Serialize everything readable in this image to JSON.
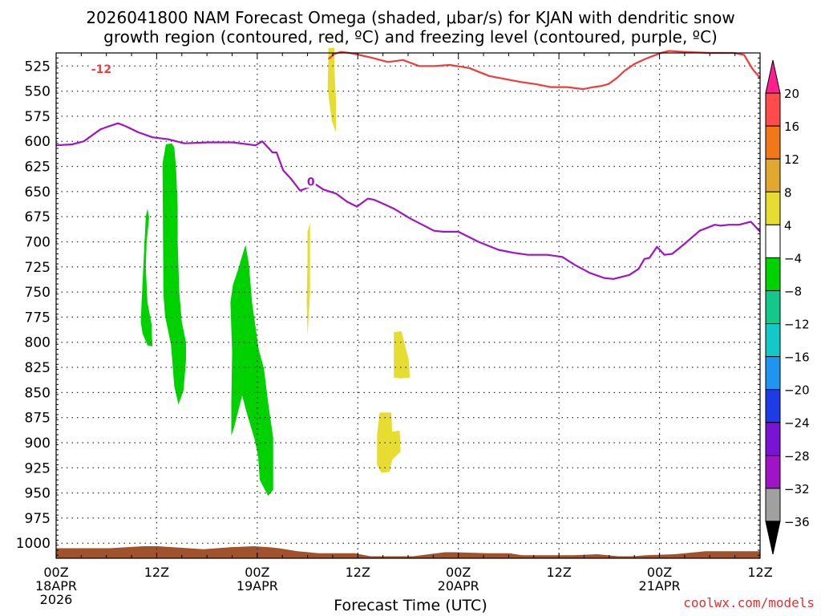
{
  "title_line1": "2026041800 NAM Forecast Omega (shaded, μbar/s) for KJAN with dendritic snow",
  "title_line2": "growth region (contoured, red, ºC) and freezing level (contoured, purple, ºC)",
  "credit": "coolwx.com/models",
  "chart_data": {
    "type": "heatmap",
    "xlabel": "Forecast Time (UTC)",
    "ylabel": "",
    "x_unit": "hours since 2026041800",
    "xlim": [
      0,
      84
    ],
    "ylim": [
      1015,
      512
    ],
    "y_ticks": [
      525,
      550,
      575,
      600,
      625,
      650,
      675,
      700,
      725,
      750,
      775,
      800,
      825,
      850,
      875,
      900,
      925,
      950,
      975,
      1000
    ],
    "x_ticks": [
      {
        "x": 0,
        "lines": [
          "00Z",
          "18APR",
          "2026"
        ]
      },
      {
        "x": 12,
        "lines": [
          "12Z"
        ]
      },
      {
        "x": 24,
        "lines": [
          "00Z",
          "19APR"
        ]
      },
      {
        "x": 36,
        "lines": [
          "12Z"
        ]
      },
      {
        "x": 48,
        "lines": [
          "00Z",
          "20APR"
        ]
      },
      {
        "x": 60,
        "lines": [
          "12Z"
        ]
      },
      {
        "x": 72,
        "lines": [
          "00Z",
          "21APR"
        ]
      },
      {
        "x": 84,
        "lines": [
          "12Z"
        ]
      }
    ],
    "grid": true,
    "colorbar": {
      "labels": [
        "20",
        "16",
        "12",
        "8",
        "4",
        "−4",
        "−8",
        "−12",
        "−16",
        "−20",
        "−24",
        "−28",
        "−32",
        "−36"
      ],
      "colors_top_to_bottom": [
        "#ff1f8f",
        "#ff4b4b",
        "#f07818",
        "#e0a830",
        "#e6dc32",
        "#ffffff",
        "#00d200",
        "#14c88c",
        "#14c8c8",
        "#1e96f0",
        "#1e3ce6",
        "#7814d2",
        "#a014c8",
        "#a0a0a0",
        "#000000"
      ]
    },
    "series": [
      {
        "name": "-12",
        "color": "#f03c3c",
        "label_at": [
          5.4,
          528
        ],
        "x": [
          32.5,
          33.2,
          34,
          35,
          36.2,
          37.8,
          39.6,
          41.4,
          43.3,
          45.1,
          47,
          49.3,
          51.7,
          53.6,
          55.5,
          57.2,
          59,
          61,
          62.9,
          64.1,
          65,
          65.9,
          66.9,
          67.8,
          69,
          70.3,
          71.2,
          72.2,
          73.1,
          75,
          78,
          80.9,
          82.1,
          83.1,
          84
        ],
        "y": [
          518,
          513,
          511,
          512,
          514,
          517,
          521,
          519,
          525,
          525,
          524,
          527,
          535,
          538,
          541,
          543,
          546,
          546,
          548,
          546,
          545,
          543,
          537,
          530,
          523,
          518,
          515,
          512,
          510,
          511,
          512,
          512,
          514,
          528,
          537
        ]
      },
      {
        "name": "0",
        "color": "#a014c8",
        "label_at": [
          30.4,
          640
        ],
        "x": [
          0,
          1.9,
          3.3,
          4.3,
          5.3,
          6.3,
          7.4,
          8.3,
          9.8,
          11.5,
          13.4,
          15.3,
          18.2,
          21.1,
          23.8,
          24.6,
          25.5,
          25.8,
          26.3,
          27.1,
          28,
          29.1,
          30.1,
          31,
          31.9,
          33.4,
          34.7,
          35.9,
          37.2,
          37.9,
          39,
          40.3,
          42.3,
          45.1,
          46.2,
          48,
          50.4,
          52.8,
          54.6,
          56.3,
          58.6,
          60.4,
          61.9,
          63.7,
          65.4,
          66.5,
          68.4,
          69.5,
          70.2,
          70.8,
          71.7,
          72.6,
          73.5,
          74.7,
          76.8,
          78.6,
          79.3,
          80.3,
          81.5,
          82.9,
          84
        ],
        "y": [
          604,
          603,
          600,
          594,
          588,
          585,
          582,
          585,
          591,
          596,
          598,
          602,
          601,
          601,
          604,
          600,
          608,
          611,
          611,
          629,
          637,
          649,
          646,
          643,
          648,
          652,
          660,
          665,
          657,
          658,
          662,
          667,
          677,
          689,
          690,
          690,
          700,
          708,
          711,
          713,
          713,
          715,
          723,
          731,
          736,
          737,
          733,
          727,
          717,
          716,
          705,
          713,
          712,
          704,
          689,
          683,
          684,
          683,
          683,
          680,
          690
        ]
      }
    ],
    "shaded_regions": [
      {
        "category": "-8 to -4",
        "color": "#00d200",
        "x": [
          10.7,
          10.9,
          11.1,
          10.8,
          10.7,
          10.9,
          11.4,
          11.4,
          11.5,
          10.9,
          10.3,
          10.1,
          10.2
        ],
        "y": [
          675,
          667,
          676,
          700,
          725,
          760,
          783,
          790,
          804,
          803,
          791,
          780,
          760
        ]
      },
      {
        "category": "-8 to -4",
        "color": "#00d200",
        "x": [
          12.7,
          13.1,
          13.8,
          14.1,
          14.3,
          14.5,
          14.5,
          14.7,
          15.0,
          15.5,
          15.5,
          15.2,
          14.6,
          14.1,
          13.7,
          13.0,
          12.8
        ],
        "y": [
          622,
          603,
          602,
          606,
          626,
          665,
          700,
          750,
          780,
          800,
          818,
          848,
          862,
          844,
          802,
          774,
          752
        ]
      },
      {
        "category": "-8 to -4",
        "color": "#00d200",
        "x": [
          21.1,
          21.7,
          22.6,
          23,
          23.4,
          24.2,
          24.8,
          25.3,
          25.9,
          25.9,
          25.3,
          24.3,
          24.1,
          23.7,
          22.7,
          22.2,
          21.2,
          20.9,
          20.9,
          21.0,
          20.8
        ],
        "y": [
          743,
          728,
          703,
          722,
          762,
          808,
          826,
          860,
          895,
          947,
          953,
          937,
          913,
          897,
          869,
          853,
          886,
          893,
          860,
          810,
          760
        ]
      },
      {
        "category": "4 to 8",
        "color": "#e6dc32",
        "x": [
          32.5,
          33.2,
          33.2,
          33.4,
          33.4,
          32.9,
          32.4
        ],
        "y": [
          507,
          507,
          529,
          558,
          591,
          580,
          548
        ]
      },
      {
        "category": "4 to 8",
        "color": "#e6dc32",
        "x": [
          30.0,
          30.3,
          30.3,
          30.0,
          29.9,
          30.0
        ],
        "y": [
          690,
          681,
          751,
          794,
          760,
          715
        ]
      },
      {
        "category": "4 to 8",
        "color": "#e6dc32",
        "x": [
          40.3,
          41.2,
          42.1,
          42.2,
          41.1,
          40.3
        ],
        "y": [
          790,
          789,
          818,
          835,
          836,
          835
        ]
      },
      {
        "category": "4 to 8",
        "color": "#e6dc32",
        "x": [
          38.6,
          40,
          40.1,
          41.0,
          41.1,
          40.1,
          39.8,
          38.8,
          38.3,
          38.3
        ],
        "y": [
          870,
          870,
          889,
          888,
          909,
          917,
          929,
          930,
          922,
          892
        ]
      }
    ],
    "terrain": {
      "color": "#a0522d",
      "x": [
        0,
        6.4,
        10.4,
        12.1,
        15.8,
        17.6,
        20.8,
        23.6,
        25.4,
        26.6,
        28.8,
        31.3,
        35.6,
        37.5,
        40.5,
        42.6,
        46.4,
        47.6,
        51.5,
        54,
        55.6,
        60.3,
        61.7,
        64.6,
        67.1,
        68.9,
        70.4,
        73.8,
        77.5,
        84
      ],
      "y": [
        1005,
        1005,
        1003,
        1003,
        1005,
        1006,
        1004,
        1003,
        1004,
        1005,
        1008,
        1010,
        1010,
        1013,
        1013,
        1013,
        1009,
        1009,
        1010,
        1010,
        1012,
        1012,
        1012,
        1011,
        1013,
        1013,
        1012,
        1011,
        1008,
        1008
      ]
    }
  }
}
